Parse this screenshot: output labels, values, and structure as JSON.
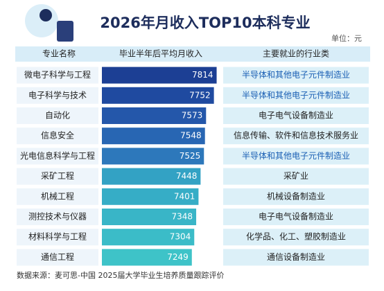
{
  "chart_data": {
    "type": "bar",
    "orientation": "horizontal",
    "title": "2026年月收入TOP10本科专业",
    "unit": "单位：元",
    "headers": [
      "专业名称",
      "毕业半年后平均月收入",
      "主要就业的行业类"
    ],
    "categories": [
      "微电子科学与工程",
      "电子科学与技术",
      "自动化",
      "信息安全",
      "光电信息科学与工程",
      "采矿工程",
      "机械工程",
      "测控技术与仪器",
      "材料科学与工程",
      "通信工程"
    ],
    "values": [
      7814,
      7752,
      7573,
      7548,
      7525,
      7448,
      7401,
      7348,
      7304,
      7249
    ],
    "colors": [
      "#1c3f94",
      "#1f4aa0",
      "#2457aa",
      "#2866b3",
      "#2d78bb",
      "#33a2c4",
      "#36adc6",
      "#39b5c7",
      "#3bbcc8",
      "#3ec3c8"
    ],
    "xlim": [
      5200,
      7900
    ],
    "industries": [
      "半导体和其他电子元件制造业",
      "半导体和其他电子元件制造业",
      "电子电气设备制造业",
      "信息传输、软件和信息技术服务业",
      "半导体和其他电子元件制造业",
      "采矿业",
      "机械设备制造业",
      "电子电气设备制造业",
      "化学品、化工、塑胶制造业",
      "通信设备制造业"
    ],
    "industry_colors": [
      "#1a5fb4",
      "#1a5fb4",
      "#222222",
      "#222222",
      "#1a5fb4",
      "#222222",
      "#222222",
      "#222222",
      "#222222",
      "#222222"
    ],
    "source": "数据来源：麦可思-中国 2025届大学毕业生培养质量跟踪评价"
  }
}
